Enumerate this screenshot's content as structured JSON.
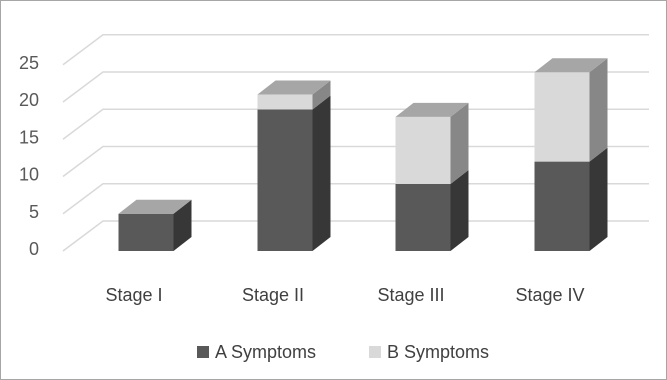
{
  "chart_data": {
    "type": "bar",
    "stacked": true,
    "three_d": true,
    "categories": [
      "Stage I",
      "Stage II",
      "Stage III",
      "Stage IV"
    ],
    "series": [
      {
        "name": "A Symptoms",
        "values": [
          5,
          19,
          9,
          12
        ],
        "color": "#595959"
      },
      {
        "name": "B Symptoms",
        "values": [
          0,
          2,
          9,
          12
        ],
        "color": "#d9d9d9"
      }
    ],
    "yticks": [
      0,
      5,
      10,
      15,
      20,
      25
    ],
    "ylim": [
      0,
      25
    ],
    "grid": true,
    "legend": "bottom",
    "title": "",
    "xlabel": "",
    "ylabel": ""
  }
}
